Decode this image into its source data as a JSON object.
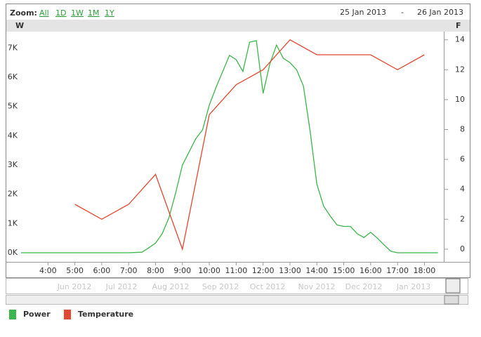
{
  "chart_data": {
    "type": "line",
    "zoom_label": "Zoom:",
    "zoom_buttons": [
      "All",
      "1D",
      "1W",
      "1M",
      "1Y"
    ],
    "date_from": "25 Jan 2013",
    "date_separator": "-",
    "date_to": "26 Jan 2013",
    "y_axis_title": "W",
    "y2_axis_title": "F",
    "xlim": [
      3,
      18.72
    ],
    "xticks": [
      {
        "value": 4,
        "label": "4:00"
      },
      {
        "value": 5,
        "label": "5:00"
      },
      {
        "value": 6,
        "label": "6:00"
      },
      {
        "value": 7,
        "label": "7:00"
      },
      {
        "value": 8,
        "label": "8:00"
      },
      {
        "value": 9,
        "label": "9:00"
      },
      {
        "value": 10,
        "label": "10:00"
      },
      {
        "value": 11,
        "label": "11:00"
      },
      {
        "value": 12,
        "label": "12:00"
      },
      {
        "value": 13,
        "label": "13:00"
      },
      {
        "value": 14,
        "label": "14:00"
      },
      {
        "value": 15,
        "label": "15:00"
      },
      {
        "value": 16,
        "label": "16:00"
      },
      {
        "value": 17,
        "label": "17:00"
      },
      {
        "value": 18,
        "label": "18:00"
      }
    ],
    "ylim": [
      -312,
      7560
    ],
    "yticks": [
      {
        "value": 0,
        "label": "0K"
      },
      {
        "value": 1000,
        "label": "1K"
      },
      {
        "value": 2000,
        "label": "2K"
      },
      {
        "value": 3000,
        "label": "3K"
      },
      {
        "value": 4000,
        "label": "4K"
      },
      {
        "value": 5000,
        "label": "5K"
      },
      {
        "value": 6000,
        "label": "6K"
      },
      {
        "value": 7000,
        "label": "7K"
      }
    ],
    "y2lim": [
      -0.85,
      14.55
    ],
    "y2ticks": [
      0,
      2,
      4,
      6,
      8,
      10,
      12,
      14
    ],
    "series": [
      {
        "name": "Power",
        "color": "#3cb54a",
        "x": [
          3,
          7,
          7.5,
          7.75,
          8,
          8.25,
          8.5,
          8.75,
          9,
          9.25,
          9.5,
          9.75,
          10,
          10.25,
          10.5,
          10.75,
          11,
          11.25,
          11.5,
          11.75,
          12,
          12.25,
          12.5,
          12.75,
          13,
          13.25,
          13.5,
          13.75,
          14,
          14.25,
          14.5,
          14.75,
          15,
          15.25,
          15.5,
          15.75,
          16,
          16.25,
          16.5,
          16.75,
          17,
          18.5
        ],
        "values": [
          0,
          0,
          20,
          170,
          330,
          650,
          1200,
          2050,
          3000,
          3450,
          3900,
          4200,
          5050,
          5650,
          6200,
          6750,
          6600,
          6200,
          7200,
          7250,
          5450,
          6450,
          7100,
          6650,
          6500,
          6250,
          5700,
          4150,
          2350,
          1600,
          1250,
          950,
          900,
          900,
          650,
          520,
          700,
          500,
          270,
          50,
          0,
          0
        ]
      },
      {
        "name": "Temperature",
        "color": "#e2472f",
        "axis": "y2",
        "x": [
          5,
          6,
          7,
          8,
          9,
          10,
          11,
          12,
          13,
          14,
          15,
          16,
          17,
          18
        ],
        "values": [
          3,
          2,
          3,
          5,
          0,
          9,
          11,
          12,
          14,
          13,
          13,
          13,
          12,
          13
        ]
      }
    ],
    "navigator_labels": [
      "Jun 2012",
      "Jul 2012",
      "Aug 2012",
      "Sep 2012",
      "Oct 2012",
      "Nov 2012",
      "Dec 2012",
      "Jan 2013"
    ]
  }
}
